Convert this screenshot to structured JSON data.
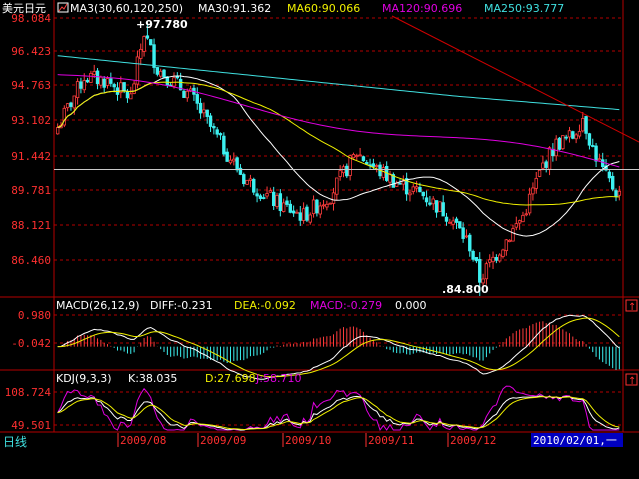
{
  "header": {
    "symbol": "美元日元",
    "ma_prefix": "MA3(30,60,120,250)",
    "ma30_label": "MA30:91.362",
    "ma60_label": "MA60:90.066",
    "ma120_label": "MA120:90.696",
    "ma250_label": "MA250:93.777"
  },
  "macd_header": {
    "prefix": "MACD(26,12,9)",
    "diff_label": "DIFF:-0.231",
    "dea_label": "DEA:-0.092",
    "macd_label": "MACD:-0.279",
    "extra_label": "0.000"
  },
  "kdj_header": {
    "prefix": "KDJ(9,3,3)",
    "k_label": "K:38.035",
    "d_label": "D:27.698",
    "j_label": "J:58.710"
  },
  "colors": {
    "grid": "#b40000",
    "axis_text": "#ff3030",
    "up": "#ff3c3c",
    "down": "#3cf0f0",
    "ma30": "#ffffff",
    "ma60": "#f0f000",
    "ma120": "#e000e0",
    "ma250": "#40e0e0",
    "trend": "#d00000",
    "horizon": "#c8c8c8",
    "selected_date_bg": "#0000c0"
  },
  "footer": {
    "period_label": "日线",
    "selected_date": "2010/02/01,一"
  },
  "chart_data": [
    {
      "type": "candlestick",
      "name": "price",
      "y_ticks": [
        "98.084",
        "96.423",
        "94.763",
        "93.102",
        "91.442",
        "89.781",
        "88.121",
        "86.460"
      ],
      "ylim": [
        84.8,
        98.084
      ],
      "x_labels": [
        "2009/08",
        "2009/09",
        "2009/10",
        "2009/11",
        "2009/12"
      ],
      "annotations": {
        "high": "97.780",
        "low": "84.800"
      },
      "horizontal_level": 90.8
    },
    {
      "type": "bar",
      "name": "macd",
      "y_ticks": [
        "0.980",
        "-0.042"
      ],
      "ylim": [
        -0.8,
        1.3
      ]
    },
    {
      "type": "line",
      "name": "kdj",
      "y_ticks": [
        "108.724",
        "49.501"
      ],
      "ylim": [
        5,
        125
      ]
    }
  ]
}
